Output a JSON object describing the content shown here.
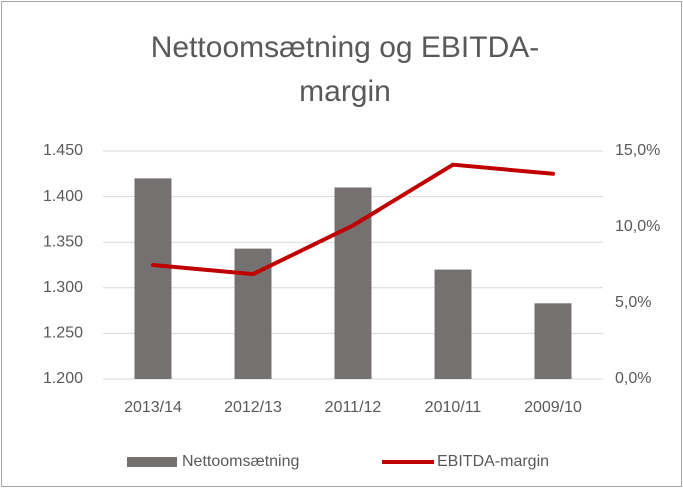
{
  "chart_data": {
    "type": "bar_line",
    "title": "Nettoomsætning og EBITDA-margin",
    "categories": [
      "2013/14",
      "2012/13",
      "2011/12",
      "2010/11",
      "2009/10"
    ],
    "series": [
      {
        "name": "Nettoomsætning",
        "type": "bar",
        "color": "#767171",
        "values": [
          1420,
          1343,
          1410,
          1320,
          1283
        ]
      },
      {
        "name": "EBITDA-margin",
        "type": "line",
        "axis": "y2",
        "color": "#c00000",
        "values": [
          7.5,
          6.9,
          10.1,
          14.1,
          13.5
        ]
      }
    ],
    "ylim": [
      1200,
      1450
    ],
    "yticks": [
      {
        "value": 1200,
        "label": "1.200"
      },
      {
        "value": 1250,
        "label": "1.250"
      },
      {
        "value": 1300,
        "label": "1.300"
      },
      {
        "value": 1350,
        "label": "1.350"
      },
      {
        "value": 1400,
        "label": "1.400"
      },
      {
        "value": 1450,
        "label": "1.450"
      }
    ],
    "y2lim": [
      0,
      15
    ],
    "y2ticks": [
      {
        "value": 0,
        "label": "0,0%"
      },
      {
        "value": 5,
        "label": "5,0%"
      },
      {
        "value": 10,
        "label": "10,0%"
      },
      {
        "value": 15,
        "label": "15,0%"
      }
    ],
    "grid": true,
    "legend": "bottom"
  }
}
